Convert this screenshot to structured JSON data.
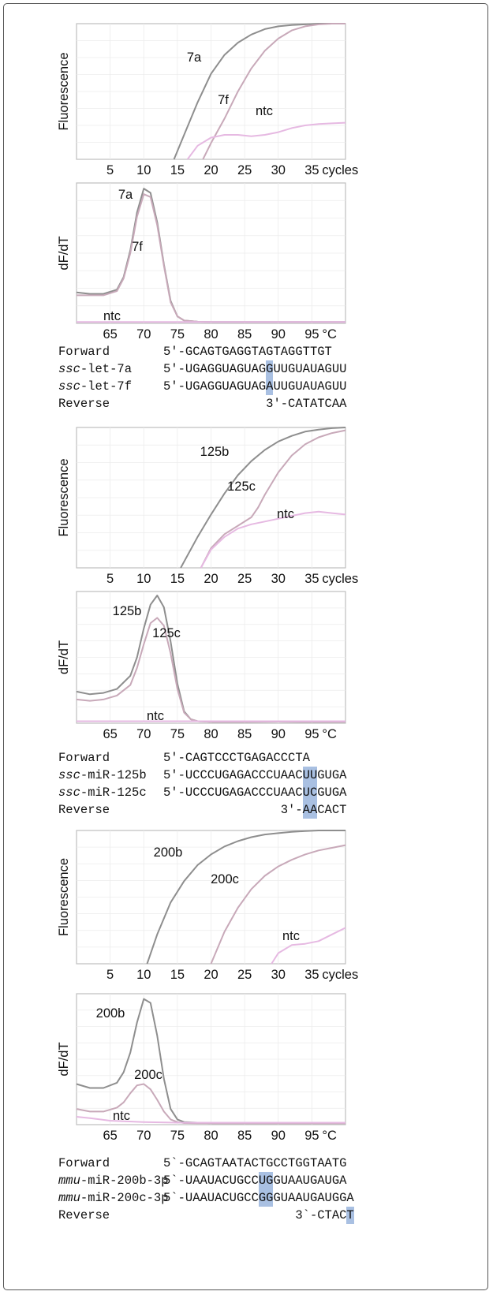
{
  "colors": {
    "series_a": "#8e8e8e",
    "series_b": "#c8a9b9",
    "ntc": "#e6b9e2",
    "highlight": "#a9c0e2",
    "axis": "#bfbfbf",
    "grid": "#ececec"
  },
  "chart_data": [
    {
      "type": "line",
      "ylabel": "Fluorescence",
      "xunit": "cycles",
      "x_ticks": [
        "5",
        "10",
        "15",
        "20",
        "25",
        "30",
        "35"
      ],
      "xlim": [
        0,
        40
      ],
      "ylim": [
        0,
        1
      ],
      "series": [
        {
          "name": "7a",
          "x": [
            14.5,
            16,
            18,
            20,
            22,
            24,
            26,
            28,
            30,
            32,
            34,
            36,
            40
          ],
          "y": [
            0,
            0.18,
            0.42,
            0.63,
            0.77,
            0.86,
            0.92,
            0.96,
            0.98,
            0.99,
            0.995,
            1.0,
            1.0
          ]
        },
        {
          "name": "7f",
          "x": [
            18.8,
            20,
            22,
            24,
            26,
            28,
            30,
            32,
            34,
            36,
            38,
            40
          ],
          "y": [
            0,
            0.12,
            0.3,
            0.5,
            0.67,
            0.8,
            0.89,
            0.95,
            0.98,
            0.995,
            1.0,
            1.0
          ]
        },
        {
          "name": "ntc",
          "x": [
            16.5,
            18,
            20,
            22,
            24,
            26,
            28,
            30,
            32,
            34,
            36,
            38,
            40
          ],
          "y": [
            0,
            0.1,
            0.16,
            0.18,
            0.18,
            0.17,
            0.18,
            0.2,
            0.23,
            0.25,
            0.26,
            0.265,
            0.27
          ]
        }
      ]
    },
    {
      "type": "line",
      "ylabel": "dF/dT",
      "xunit": "°C",
      "x_ticks": [
        "65",
        "70",
        "75",
        "80",
        "85",
        "90",
        "95"
      ],
      "xlim": [
        60,
        100
      ],
      "ylim": [
        0,
        1
      ],
      "series": [
        {
          "name": "7a",
          "x": [
            60,
            62,
            64,
            66,
            67,
            68,
            69,
            70,
            71,
            72,
            73,
            74,
            75,
            76,
            78,
            80,
            85,
            90,
            95,
            100
          ],
          "y": [
            0.22,
            0.21,
            0.21,
            0.24,
            0.33,
            0.52,
            0.79,
            0.96,
            0.93,
            0.72,
            0.42,
            0.16,
            0.05,
            0.02,
            0.012,
            0.01,
            0.01,
            0.01,
            0.01,
            0.01
          ]
        },
        {
          "name": "7f",
          "x": [
            60,
            62,
            64,
            66,
            67,
            68,
            69,
            70,
            71,
            72,
            73,
            74,
            75,
            76,
            78,
            80,
            85,
            90,
            95,
            100
          ],
          "y": [
            0.2,
            0.2,
            0.2,
            0.23,
            0.32,
            0.5,
            0.76,
            0.92,
            0.9,
            0.7,
            0.41,
            0.15,
            0.05,
            0.02,
            0.012,
            0.01,
            0.01,
            0.01,
            0.01,
            0.01
          ]
        },
        {
          "name": "ntc",
          "x": [
            60,
            70,
            80,
            90,
            100
          ],
          "y": [
            0.01,
            0.01,
            0.01,
            0.01,
            0.01
          ]
        }
      ]
    },
    {
      "type": "line",
      "ylabel": "Fluorescence",
      "xunit": "cycles",
      "x_ticks": [
        "5",
        "10",
        "15",
        "20",
        "25",
        "30",
        "35"
      ],
      "xlim": [
        0,
        40
      ],
      "ylim": [
        0,
        1
      ],
      "series": [
        {
          "name": "125b",
          "x": [
            15.5,
            18,
            20,
            22,
            24,
            26,
            28,
            30,
            32,
            34,
            36,
            38,
            40
          ],
          "y": [
            0,
            0.22,
            0.38,
            0.53,
            0.66,
            0.76,
            0.84,
            0.9,
            0.94,
            0.97,
            0.985,
            0.995,
            1.0
          ]
        },
        {
          "name": "125c",
          "x": [
            18.5,
            20,
            22,
            24,
            26,
            27,
            28,
            30,
            32,
            34,
            36,
            38,
            40
          ],
          "y": [
            0,
            0.14,
            0.24,
            0.3,
            0.36,
            0.43,
            0.52,
            0.68,
            0.8,
            0.88,
            0.93,
            0.96,
            0.98
          ]
        },
        {
          "name": "ntc",
          "x": [
            18.5,
            20,
            22,
            24,
            26,
            28,
            30,
            32,
            34,
            36,
            38,
            40
          ],
          "y": [
            0,
            0.13,
            0.22,
            0.28,
            0.31,
            0.33,
            0.35,
            0.37,
            0.39,
            0.4,
            0.39,
            0.38
          ]
        }
      ]
    },
    {
      "type": "line",
      "ylabel": "dF/dT",
      "xunit": "°C",
      "x_ticks": [
        "65",
        "70",
        "75",
        "80",
        "85",
        "90",
        "95"
      ],
      "xlim": [
        60,
        100
      ],
      "ylim": [
        0,
        1
      ],
      "series": [
        {
          "name": "125b",
          "x": [
            60,
            62,
            64,
            66,
            68,
            69,
            70,
            71,
            72,
            73,
            74,
            75,
            76,
            77,
            78,
            80,
            85,
            90,
            95,
            100
          ],
          "y": [
            0.24,
            0.22,
            0.23,
            0.26,
            0.36,
            0.5,
            0.72,
            0.9,
            0.97,
            0.88,
            0.62,
            0.3,
            0.09,
            0.03,
            0.015,
            0.01,
            0.01,
            0.012,
            0.01,
            0.01
          ]
        },
        {
          "name": "125c",
          "x": [
            60,
            62,
            64,
            66,
            68,
            69,
            70,
            71,
            72,
            73,
            74,
            75,
            76,
            77,
            78,
            80,
            85,
            90,
            95,
            100
          ],
          "y": [
            0.18,
            0.17,
            0.18,
            0.21,
            0.29,
            0.42,
            0.6,
            0.76,
            0.8,
            0.74,
            0.53,
            0.26,
            0.08,
            0.03,
            0.015,
            0.01,
            0.01,
            0.012,
            0.01,
            0.01
          ]
        },
        {
          "name": "ntc",
          "x": [
            60,
            70,
            80,
            90,
            100
          ],
          "y": [
            0.015,
            0.015,
            0.015,
            0.015,
            0.015
          ]
        }
      ]
    },
    {
      "type": "line",
      "ylabel": "Fluorescence",
      "xunit": "cycles",
      "x_ticks": [
        "5",
        "10",
        "15",
        "20",
        "25",
        "30",
        "35"
      ],
      "xlim": [
        0,
        40
      ],
      "ylim": [
        0,
        1
      ],
      "series": [
        {
          "name": "200b",
          "x": [
            10.5,
            12,
            14,
            16,
            18,
            20,
            22,
            24,
            26,
            28,
            30,
            32,
            34,
            36,
            38,
            40
          ],
          "y": [
            0,
            0.22,
            0.46,
            0.62,
            0.74,
            0.82,
            0.88,
            0.92,
            0.95,
            0.97,
            0.98,
            0.99,
            0.995,
            1.0,
            1.0,
            1.0
          ]
        },
        {
          "name": "200c",
          "x": [
            20,
            22,
            24,
            26,
            28,
            30,
            32,
            34,
            36,
            38,
            40
          ],
          "y": [
            0,
            0.24,
            0.42,
            0.56,
            0.66,
            0.73,
            0.78,
            0.82,
            0.85,
            0.87,
            0.89
          ]
        },
        {
          "name": "ntc",
          "x": [
            29,
            30,
            32,
            34,
            36,
            38,
            40
          ],
          "y": [
            0,
            0.08,
            0.14,
            0.15,
            0.17,
            0.22,
            0.27
          ]
        }
      ]
    },
    {
      "type": "line",
      "ylabel": "dF/dT",
      "xunit": "°C",
      "x_ticks": [
        "65",
        "70",
        "75",
        "80",
        "85",
        "90",
        "95"
      ],
      "xlim": [
        60,
        100
      ],
      "ylim": [
        0,
        1
      ],
      "series": [
        {
          "name": "200b",
          "x": [
            60,
            62,
            64,
            66,
            67,
            68,
            69,
            70,
            71,
            72,
            73,
            74,
            75,
            76,
            78,
            80,
            85,
            90,
            95,
            100
          ],
          "y": [
            0.31,
            0.28,
            0.28,
            0.32,
            0.4,
            0.55,
            0.78,
            0.96,
            0.93,
            0.68,
            0.35,
            0.12,
            0.04,
            0.02,
            0.015,
            0.01,
            0.01,
            0.01,
            0.01,
            0.01
          ]
        },
        {
          "name": "200c",
          "x": [
            60,
            62,
            64,
            66,
            67,
            68,
            69,
            70,
            71,
            72,
            73,
            74,
            75,
            76,
            78,
            80,
            85,
            90,
            95,
            100
          ],
          "y": [
            0.12,
            0.1,
            0.1,
            0.13,
            0.17,
            0.24,
            0.3,
            0.31,
            0.27,
            0.19,
            0.1,
            0.04,
            0.02,
            0.012,
            0.01,
            0.01,
            0.01,
            0.01,
            0.01,
            0.01
          ]
        },
        {
          "name": "ntc",
          "x": [
            60,
            62,
            65,
            70,
            75,
            80,
            90,
            100
          ],
          "y": [
            0.06,
            0.05,
            0.03,
            0.02,
            0.015,
            0.015,
            0.015,
            0.015
          ]
        }
      ]
    }
  ],
  "sequences": [
    {
      "rows": [
        {
          "name": "Forward",
          "italic": "",
          "rest": "",
          "seq": "5′-GCAGTGAGGTAGTAGGTTGT"
        },
        {
          "name": "",
          "italic": "ssc",
          "rest": "-let-7a",
          "seq": "5′-UGAGGUAGUAGGUUGUAUAGUU"
        },
        {
          "name": "",
          "italic": "ssc",
          "rest": "-let-7f",
          "seq": "5′-UGAGGUAGUAGAUUGUAUAGUU"
        },
        {
          "name": "Reverse",
          "italic": "",
          "rest": "",
          "seq": "3′-CATATCAA"
        }
      ]
    },
    {
      "rows": [
        {
          "name": "Forward",
          "italic": "",
          "rest": "",
          "seq": "5′-CAGTCCCTGAGACCCTA"
        },
        {
          "name": "",
          "italic": "ssc",
          "rest": "-miR-125b",
          "seq": "5′-UCCCUGAGACCCUAACUUGUGA"
        },
        {
          "name": "",
          "italic": "ssc",
          "rest": "-miR-125c",
          "seq": "5′-UCCCUGAGACCCUAACUCGUGA"
        },
        {
          "name": "Reverse",
          "italic": "",
          "rest": "",
          "seq": "3′-AACACT"
        }
      ]
    },
    {
      "rows": [
        {
          "name": "Forward",
          "italic": "",
          "rest": "",
          "seq": "5`-GCAGTAATACTGCCTGGTAATG"
        },
        {
          "name": "",
          "italic": "mmu",
          "rest": "-miR-200b-3p",
          "seq": "5`-UAAUACUGCCUGGUAAUGAUGA"
        },
        {
          "name": "",
          "italic": "mmu",
          "rest": "-miR-200c-3p",
          "seq": "5`-UAAUACUGCCGGGUAAUGAUGGA"
        },
        {
          "name": "Reverse",
          "italic": "",
          "rest": "",
          "seq": "3`-CTACT"
        }
      ]
    }
  ]
}
